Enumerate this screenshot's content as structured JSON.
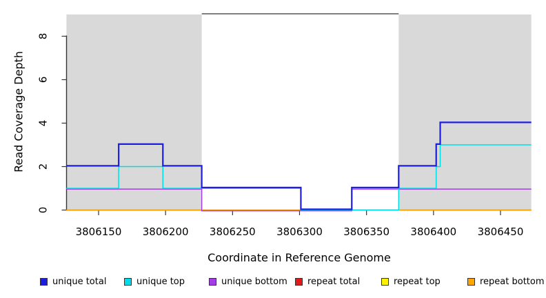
{
  "chart_data": {
    "type": "line",
    "subtype": "step-after",
    "title": "",
    "xlabel": "Coordinate in Reference Genome",
    "ylabel": "Read Coverage Depth",
    "xlim": [
      3806126,
      3806473
    ],
    "ylim": [
      0,
      9
    ],
    "xticks": [
      3806150,
      3806200,
      3806250,
      3806300,
      3806350,
      3806400,
      3806450
    ],
    "yticks": [
      0,
      2,
      4,
      6,
      8
    ],
    "grid": false,
    "legend_position": "bottom",
    "background_color": "#FFFFFF",
    "plot_background_color": "#FFFFFF",
    "shaded_region_color": "#D9D9D9",
    "axis_color": "#333333",
    "shaded_regions": [
      {
        "name": "left-shaded-region",
        "from": 3806126,
        "to": 3806227
      },
      {
        "name": "right-shaded-region",
        "from": 3806374,
        "to": 3806473
      }
    ],
    "top_boundary_line": {
      "from": 3806227,
      "to": 3806374,
      "depth": 9,
      "color": "#555555"
    },
    "series": [
      {
        "name": "unique total",
        "color": "#1D1DE0",
        "steps": [
          [
            3806126,
            2
          ],
          [
            3806165,
            3
          ],
          [
            3806198,
            2
          ],
          [
            3806227,
            1
          ],
          [
            3806301,
            0
          ],
          [
            3806339,
            1
          ],
          [
            3806374,
            2
          ],
          [
            3806402,
            3
          ],
          [
            3806405,
            4
          ]
        ],
        "end_x": 3806473
      },
      {
        "name": "unique top",
        "color": "#00DDE8",
        "steps": [
          [
            3806126,
            1
          ],
          [
            3806165,
            2
          ],
          [
            3806198,
            1
          ],
          [
            3806301,
            0
          ],
          [
            3806374,
            1
          ],
          [
            3806402,
            2
          ],
          [
            3806405,
            3
          ]
        ],
        "end_x": 3806473
      },
      {
        "name": "unique bottom",
        "color": "#A43CE8",
        "steps": [
          [
            3806126,
            1
          ],
          [
            3806227,
            0
          ],
          [
            3806339,
            1
          ]
        ],
        "end_x": 3806473
      },
      {
        "name": "repeat total",
        "color": "#E31A1A",
        "steps": [
          [
            3806126,
            0
          ]
        ],
        "end_x": 3806473
      },
      {
        "name": "repeat top",
        "color": "#FFF200",
        "steps": [
          [
            3806126,
            0
          ]
        ],
        "end_x": 3806473
      },
      {
        "name": "repeat bottom",
        "color": "#FFA500",
        "steps": [
          [
            3806126,
            0
          ]
        ],
        "end_x": 3806473
      }
    ]
  }
}
